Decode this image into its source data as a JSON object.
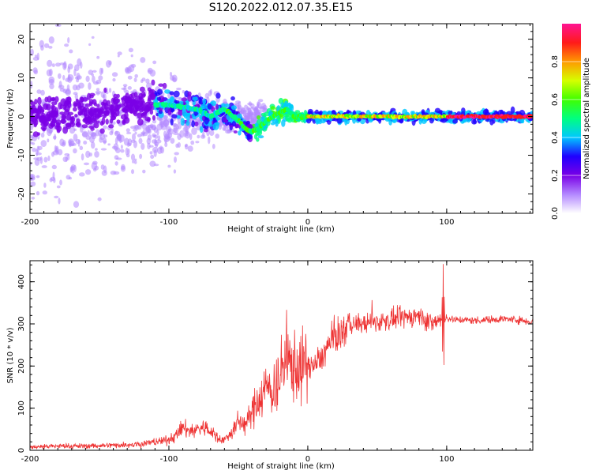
{
  "chart_data": [
    {
      "type": "heatmap",
      "title": "S120.2022.012.07.35.E15",
      "xlabel": "Height of straight line (km)",
      "ylabel": "Frequency (Hz)",
      "xlim": [
        -200,
        162
      ],
      "ylim": [
        -25,
        24
      ],
      "x_ticks": [
        -200,
        -100,
        0,
        100
      ],
      "x_tick_labels": [
        "-200",
        "-100",
        "0",
        "100"
      ],
      "y_ticks": [
        -20,
        -10,
        0,
        10,
        20
      ],
      "y_tick_labels": [
        "-20",
        "-10",
        "0",
        "10",
        "20"
      ],
      "ridge_frequency": {
        "x": [
          -200,
          -150,
          -120,
          -100,
          -80,
          -70,
          -60,
          -50,
          -45,
          -40,
          -35,
          -30,
          -25,
          -20,
          -15,
          -10,
          0,
          50,
          100,
          162
        ],
        "y": [
          0,
          1,
          3,
          3,
          2,
          0,
          2,
          -1,
          -3,
          -4,
          -3,
          -1,
          0,
          1,
          2,
          0,
          0,
          0,
          0,
          0
        ]
      },
      "colorbar": {
        "label": "Normalized spectral amplitude",
        "range": [
          0.0,
          1.0
        ],
        "ticks": [
          0.0,
          0.2,
          0.4,
          0.6,
          0.8
        ],
        "tick_labels": [
          "0.0",
          "0.2",
          "0.4",
          "0.6",
          "0.8"
        ],
        "colors": [
          "#ffffff",
          "#b388ff",
          "#7a00e6",
          "#1f00ff",
          "#00c8ff",
          "#00ff80",
          "#40ff00",
          "#d6ff00",
          "#ff9900",
          "#ff1a1a",
          "#ff1493"
        ]
      }
    },
    {
      "type": "line",
      "title": "",
      "xlabel": "Height of straight line (km)",
      "ylabel": "SNR (10 * v/v)",
      "xlim": [
        -200,
        162
      ],
      "ylim": [
        0,
        450
      ],
      "x_ticks": [
        -200,
        -100,
        0,
        100
      ],
      "x_tick_labels": [
        "-200",
        "-100",
        "0",
        "100"
      ],
      "y_ticks": [
        0,
        100,
        200,
        300,
        400
      ],
      "y_tick_labels": [
        "0",
        "100",
        "200",
        "300",
        "400"
      ],
      "color": "#ee3333",
      "series": [
        {
          "x": [
            -200,
            -180,
            -160,
            -140,
            -120,
            -110,
            -100,
            -95,
            -90,
            -85,
            -80,
            -75,
            -70,
            -65,
            -60,
            -55,
            -50,
            -45,
            -40,
            -35,
            -30,
            -25,
            -20,
            -15,
            -10,
            -5,
            0,
            5,
            10,
            15,
            20,
            25,
            30,
            40,
            50,
            60,
            70,
            80,
            90,
            95,
            100,
            105,
            110,
            120,
            130,
            140,
            150,
            162
          ],
          "y": [
            8,
            10,
            10,
            12,
            15,
            20,
            25,
            35,
            55,
            45,
            50,
            55,
            45,
            30,
            25,
            40,
            70,
            60,
            90,
            120,
            150,
            140,
            180,
            210,
            200,
            195,
            205,
            200,
            220,
            250,
            270,
            280,
            300,
            300,
            305,
            310,
            315,
            320,
            300,
            310,
            315,
            310,
            310,
            308,
            310,
            312,
            310,
            305
          ]
        }
      ]
    }
  ]
}
